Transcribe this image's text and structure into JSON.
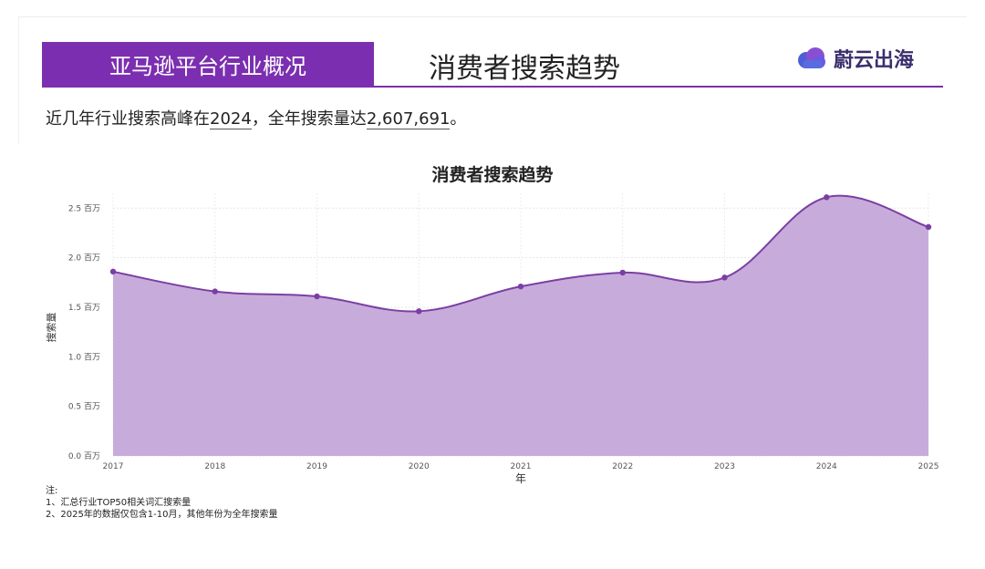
{
  "header": {
    "section_label": "亚马逊平台行业概况",
    "title": "消费者搜索趋势",
    "brand_name": "蔚云出海"
  },
  "summary": {
    "prefix": "近几年行业搜索高峰在",
    "peak_year": "2024",
    "middle": "，全年搜索量达",
    "peak_value": "2,607,691",
    "suffix": "。"
  },
  "colors": {
    "accent": "#7b2fb0",
    "area_fill": "#c4a8d9",
    "line": "#7b3fa3"
  },
  "chart_data": {
    "type": "area",
    "title": "消费者搜索趋势",
    "xlabel": "年",
    "ylabel": "搜索量",
    "x": [
      2017,
      2018,
      2019,
      2020,
      2021,
      2022,
      2023,
      2024,
      2025
    ],
    "series": [
      {
        "values": [
          1.86,
          1.66,
          1.61,
          1.46,
          1.71,
          1.85,
          1.8,
          2.61,
          2.31
        ]
      }
    ],
    "y_unit": "百万",
    "ylim": [
      0,
      2.65
    ],
    "yticks": [
      {
        "value": 0,
        "label": "0.0 百万"
      },
      {
        "value": 0.5,
        "label": "0.5 百万"
      },
      {
        "value": 1.0,
        "label": "1.0 百万"
      },
      {
        "value": 1.5,
        "label": "1.5 百万"
      },
      {
        "value": 2.0,
        "label": "2.0 百万"
      },
      {
        "value": 2.5,
        "label": "2.5 百万"
      }
    ],
    "xtick_labels": [
      "2017",
      "2018",
      "2019",
      "2020",
      "2021",
      "2022",
      "2023",
      "2024",
      "2025"
    ],
    "grid": true,
    "legend": "none"
  },
  "notes": {
    "heading": "注:",
    "items": [
      "1、汇总行业TOP50相关词汇搜索量",
      "2、2025年的数据仅包含1-10月，其他年份为全年搜索量"
    ]
  }
}
